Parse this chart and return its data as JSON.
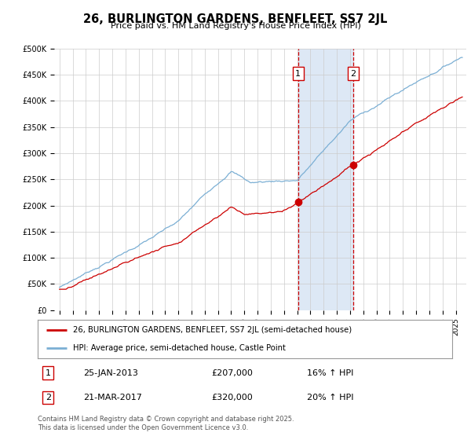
{
  "title": "26, BURLINGTON GARDENS, BENFLEET, SS7 2JL",
  "subtitle": "Price paid vs. HM Land Registry's House Price Index (HPI)",
  "ylim": [
    0,
    500000
  ],
  "purchase1": {
    "date": "25-JAN-2013",
    "price": 207000,
    "label": "1",
    "pct": "16%",
    "dir": "↑"
  },
  "purchase2": {
    "date": "21-MAR-2017",
    "price": 320000,
    "label": "2",
    "pct": "20%",
    "dir": "↑"
  },
  "purchase1_year": 2013.07,
  "purchase2_year": 2017.22,
  "legend_house": "26, BURLINGTON GARDENS, BENFLEET, SS7 2JL (semi-detached house)",
  "legend_hpi": "HPI: Average price, semi-detached house, Castle Point",
  "footer": "Contains HM Land Registry data © Crown copyright and database right 2025.\nThis data is licensed under the Open Government Licence v3.0.",
  "line_color_red": "#cc0000",
  "line_color_blue": "#7bafd4",
  "shade_color": "#dde8f5",
  "grid_color": "#cccccc",
  "background_color": "#ffffff"
}
